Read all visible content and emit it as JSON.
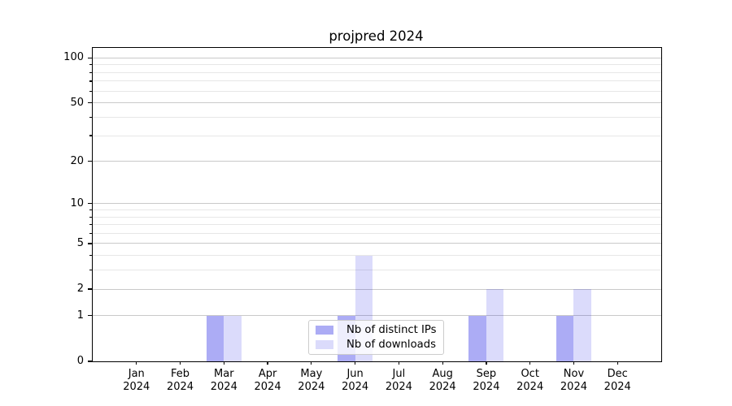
{
  "chart_data": {
    "type": "bar",
    "title": "projpred 2024",
    "categories": [
      {
        "month": "Jan",
        "year": "2024"
      },
      {
        "month": "Feb",
        "year": "2024"
      },
      {
        "month": "Mar",
        "year": "2024"
      },
      {
        "month": "Apr",
        "year": "2024"
      },
      {
        "month": "May",
        "year": "2024"
      },
      {
        "month": "Jun",
        "year": "2024"
      },
      {
        "month": "Jul",
        "year": "2024"
      },
      {
        "month": "Aug",
        "year": "2024"
      },
      {
        "month": "Sep",
        "year": "2024"
      },
      {
        "month": "Oct",
        "year": "2024"
      },
      {
        "month": "Nov",
        "year": "2024"
      },
      {
        "month": "Dec",
        "year": "2024"
      }
    ],
    "series": [
      {
        "name": "Nb of distinct IPs",
        "color": "rgba(16,16,226,0.35)",
        "values": [
          0,
          0,
          1,
          0,
          0,
          1,
          0,
          0,
          1,
          0,
          1,
          0
        ]
      },
      {
        "name": "Nb of downloads",
        "color": "rgba(16,16,226,0.15)",
        "values": [
          0,
          0,
          1,
          0,
          0,
          4,
          0,
          0,
          2,
          0,
          2,
          0
        ]
      }
    ],
    "yscale": "log10(1+value)",
    "ylim": [
      0,
      116.7
    ],
    "y_major_ticks": [
      0,
      1,
      2,
      5,
      10,
      20,
      50,
      100
    ],
    "y_minor_ticks": [
      3,
      4,
      6,
      7,
      8,
      9,
      30,
      40,
      60,
      70,
      80,
      90
    ],
    "grid": true,
    "legend_position": "lower center"
  },
  "colors": {
    "major_grid": "#c9c9c9",
    "minor_grid": "#e7e7e7",
    "spine": "#000000",
    "text": "#000000",
    "legend_border": "#cccccc"
  }
}
